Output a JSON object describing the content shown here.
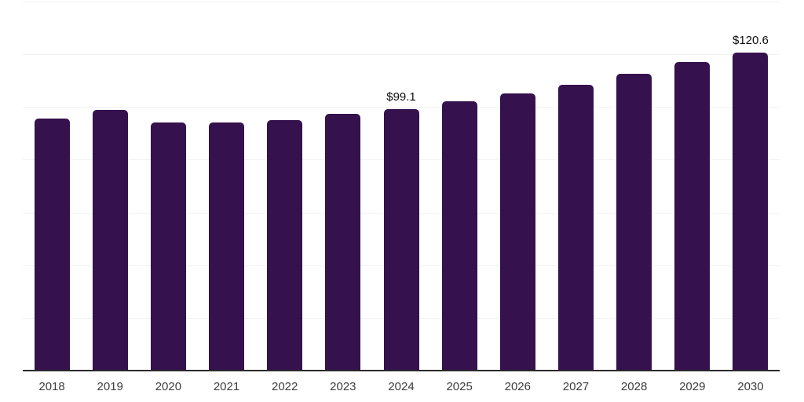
{
  "colors": {
    "background": "#ffffff",
    "bar": "#35114d",
    "axis_line": "#2a2a2a",
    "gridline": "#f2f2f2",
    "year_label": "#3c3c3c",
    "value_label": "#0d0d0d"
  },
  "chart_data": {
    "type": "bar",
    "title": "",
    "xlabel": "",
    "ylabel": "",
    "categories": [
      "2018",
      "2019",
      "2020",
      "2021",
      "2022",
      "2023",
      "2024",
      "2025",
      "2026",
      "2027",
      "2028",
      "2029",
      "2030"
    ],
    "values": [
      95.7,
      98.8,
      94.2,
      94.0,
      95.1,
      97.4,
      99.1,
      102.2,
      105.2,
      108.5,
      112.6,
      117.0,
      120.6
    ],
    "data_labels": [
      "",
      "",
      "",
      "",
      "",
      "",
      "$99.1",
      "",
      "",
      "",
      "",
      "",
      "$120.6"
    ],
    "ylim": [
      0,
      140
    ],
    "grid_interval": 20,
    "grid": "horizontal-only",
    "legend_position": "none",
    "y_axis_tick_labels": "none"
  }
}
